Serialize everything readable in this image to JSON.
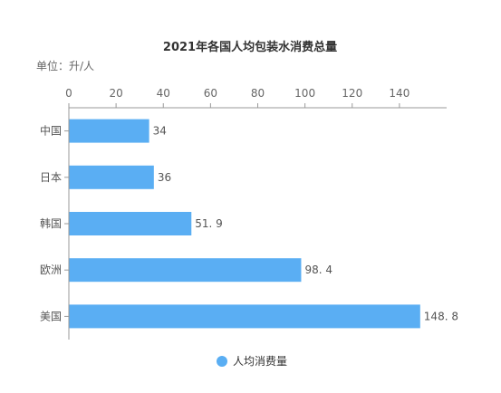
{
  "chart_data": {
    "type": "bar",
    "orientation": "horizontal",
    "title": "2021年各国人均包装水消费总量",
    "unit_label": "单位：升/人",
    "categories": [
      "中国",
      "日本",
      "韩国",
      "欧洲",
      "美国"
    ],
    "series": [
      {
        "name": "人均消费量",
        "values": [
          34,
          36,
          51.9,
          98.4,
          148.8
        ],
        "value_labels": [
          "34",
          "36",
          "51. 9",
          "98. 4",
          "148. 8"
        ],
        "color": "#5aaef3"
      }
    ],
    "xlim": [
      0,
      160
    ],
    "xticks": [
      0,
      20,
      40,
      60,
      80,
      100,
      120,
      140
    ],
    "x_axis_position": "top",
    "grid": false,
    "legend_position": "bottom-center"
  }
}
